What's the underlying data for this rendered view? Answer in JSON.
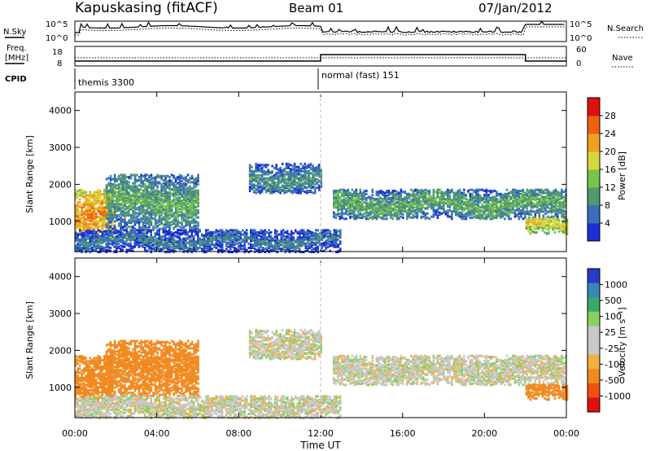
{
  "header": {
    "station": "Kapuskasing (fitACF)",
    "beam": "Beam 01",
    "date": "07/Jan/2012"
  },
  "labels": {
    "nsky": "N.Sky",
    "nsearch": "N.Search",
    "freq_line1": "Freq.",
    "freq_line2": "[MHz]",
    "nave": "Nave",
    "cpid": "CPID"
  },
  "summary_axes": {
    "noise_left_ticks": [
      "10^5",
      "10^0"
    ],
    "noise_right_ticks": [
      "10^5",
      "10^0"
    ],
    "freq_left_ticks": [
      "18",
      "8"
    ],
    "nave_right_ticks": [
      "60",
      "0"
    ]
  },
  "cpid_segments": [
    {
      "label": "themis 3300",
      "start_h": 0
    },
    {
      "label": "normal (fast) 151",
      "start_h": 12
    }
  ],
  "time_axis": {
    "label": "Time UT",
    "ticks": [
      "00:00",
      "04:00",
      "08:00",
      "12:00",
      "16:00",
      "20:00",
      "00:00"
    ]
  },
  "power_panel": {
    "ylabel": "Slant Range [km]",
    "yticks": [
      "1000",
      "2000",
      "3000",
      "4000"
    ],
    "colorbar_label": "Power [dB]",
    "colorbar_ticks": [
      "4",
      "8",
      "12",
      "16",
      "20",
      "24",
      "28"
    ],
    "colors": [
      "#1b2fd6",
      "#3a6fb8",
      "#4f9a6f",
      "#78c44a",
      "#d6d838",
      "#f0a020",
      "#ee6010",
      "#e01010"
    ]
  },
  "velocity_panel": {
    "ylabel": "Slant Range [km]",
    "yticks": [
      "1000",
      "2000",
      "3000",
      "4000"
    ],
    "colorbar_label": "Velocity [m s⁻¹]",
    "colorbar_ticks": [
      "1000",
      "500",
      "100",
      "25",
      "-25",
      "-100",
      "-500",
      "-1000"
    ],
    "colors": [
      "#2a3ac8",
      "#3a86b8",
      "#3aa86a",
      "#88d060",
      "#c8c8c8",
      "#c8c8c8",
      "#f0b040",
      "#f08a20",
      "#ee5010",
      "#e01010"
    ]
  },
  "chart_data": {
    "type": "heatmap",
    "x_range_hours": [
      0,
      24
    ],
    "y_range_km": [
      180,
      4500
    ],
    "freq_mhz_range": [
      8,
      18
    ],
    "nave_range": [
      0,
      60
    ],
    "freq_mhz_steps": [
      {
        "start_h": 0,
        "end_h": 12,
        "value": 10.5
      },
      {
        "start_h": 12,
        "end_h": 22,
        "value": 13.8
      },
      {
        "start_h": 22,
        "end_h": 24,
        "value": 10.5
      }
    ],
    "scatter_regions": [
      {
        "start_h": 0,
        "end_h": 1.8,
        "low_km": 700,
        "high_km": 1900,
        "power_db": 22,
        "velocity": -300
      },
      {
        "start_h": 1.5,
        "end_h": 6.0,
        "low_km": 800,
        "high_km": 2300,
        "power_db": 10,
        "velocity": -200
      },
      {
        "start_h": 8.5,
        "end_h": 12.0,
        "low_km": 1800,
        "high_km": 2600,
        "power_db": 8,
        "velocity": 0
      },
      {
        "start_h": 12.6,
        "end_h": 24.0,
        "low_km": 1100,
        "high_km": 1900,
        "power_db": 10,
        "velocity": 0
      },
      {
        "start_h": 22.0,
        "end_h": 24.0,
        "low_km": 700,
        "high_km": 1100,
        "power_db": 18,
        "velocity": -300
      },
      {
        "start_h": 0,
        "end_h": 13.0,
        "low_km": 200,
        "high_km": 800,
        "power_db": 6,
        "velocity": 0
      }
    ]
  }
}
